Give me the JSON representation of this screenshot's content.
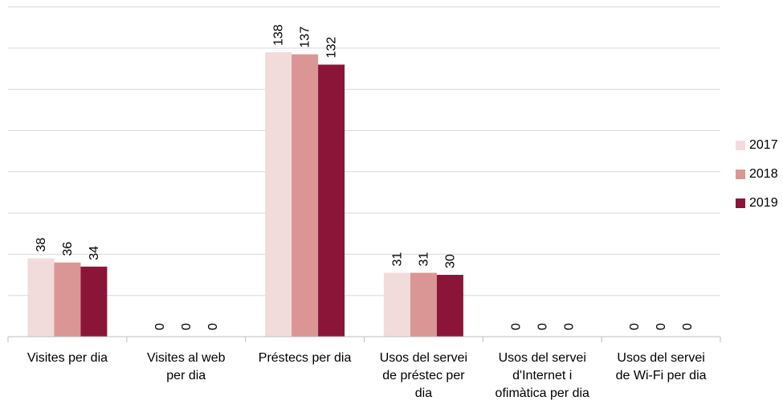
{
  "chart_data": {
    "type": "bar",
    "categories": [
      [
        "Visites per dia"
      ],
      [
        "Visites al web",
        "per dia"
      ],
      [
        "Préstecs per dia"
      ],
      [
        "Usos del servei",
        "de préstec per",
        "dia"
      ],
      [
        "Usos del servei",
        "d'Internet i",
        "ofimàtica per dia"
      ],
      [
        "Usos del servei",
        "de Wi-Fi per dia"
      ]
    ],
    "series": [
      {
        "name": "2017",
        "color": "#f2dcdb",
        "values": [
          38,
          0,
          138,
          31,
          0,
          0
        ]
      },
      {
        "name": "2018",
        "color": "#da9694",
        "values": [
          36,
          0,
          137,
          31,
          0,
          0
        ]
      },
      {
        "name": "2019",
        "color": "#8b1538",
        "values": [
          34,
          0,
          132,
          30,
          0,
          0
        ]
      }
    ],
    "ylim": [
      0,
      160
    ],
    "grid": true,
    "legend_position": "right",
    "data_labels": true
  }
}
